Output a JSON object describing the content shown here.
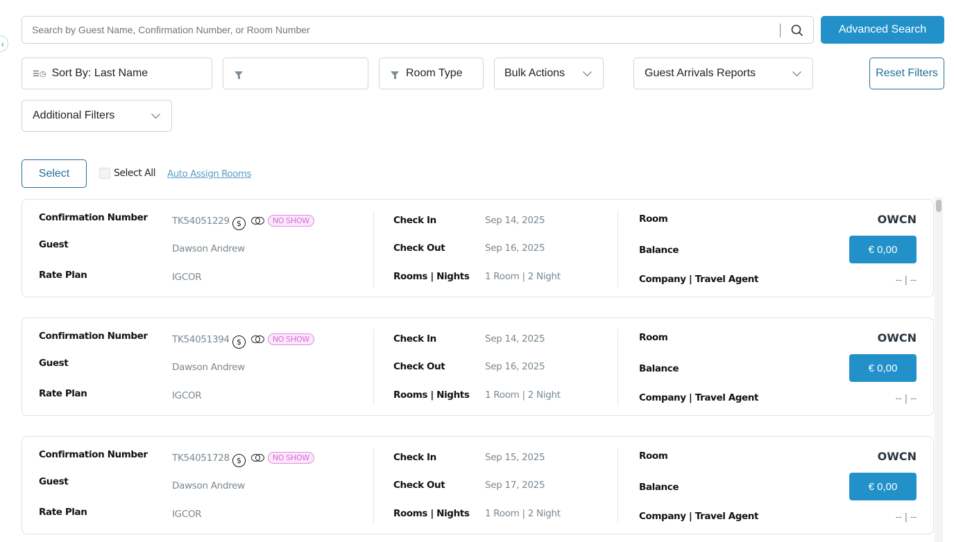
{
  "search": {
    "placeholder": "Search by Guest Name, Confirmation Number, or Room Number",
    "value": ""
  },
  "toolbar": {
    "advanced_search": "Advanced Search",
    "sort_by": "Sort By: Last Name",
    "filter_value": "",
    "room_type": "Room Type",
    "bulk_actions": "Bulk Actions",
    "reports": "Guest Arrivals Reports",
    "reset_filters": "Reset Filters",
    "additional_filters": "Additional Filters"
  },
  "selection": {
    "select": "Select",
    "select_all": "Select All",
    "auto_assign": "Auto Assign Rooms"
  },
  "labels": {
    "confirmation": "Confirmation Number",
    "guest": "Guest",
    "rate_plan": "Rate Plan",
    "check_in": "Check In",
    "check_out": "Check Out",
    "rooms_nights": "Rooms | Nights",
    "room": "Room",
    "balance": "Balance",
    "company": "Company | Travel Agent"
  },
  "colors": {
    "primary": "#2391c9",
    "no_show": "#d66ad4"
  },
  "reservations": [
    {
      "confirmation": "TK54051229",
      "status": "NO SHOW",
      "guest": "Dawson Andrew",
      "rate_plan": "IGCOR",
      "check_in": "Sep 14, 2025",
      "check_out": "Sep 16, 2025",
      "rooms_nights": "1 Room | 2 Night",
      "room": "OWCN",
      "balance": "€ 0,00",
      "company": "-- | --"
    },
    {
      "confirmation": "TK54051394",
      "status": "NO SHOW",
      "guest": "Dawson Andrew",
      "rate_plan": "IGCOR",
      "check_in": "Sep 14, 2025",
      "check_out": "Sep 16, 2025",
      "rooms_nights": "1 Room | 2 Night",
      "room": "OWCN",
      "balance": "€ 0,00",
      "company": "-- | --"
    },
    {
      "confirmation": "TK54051728",
      "status": "NO SHOW",
      "guest": "Dawson Andrew",
      "rate_plan": "IGCOR",
      "check_in": "Sep 15, 2025",
      "check_out": "Sep 17, 2025",
      "rooms_nights": "1 Room | 2 Night",
      "room": "OWCN",
      "balance": "€ 0,00",
      "company": "-- | --"
    }
  ]
}
